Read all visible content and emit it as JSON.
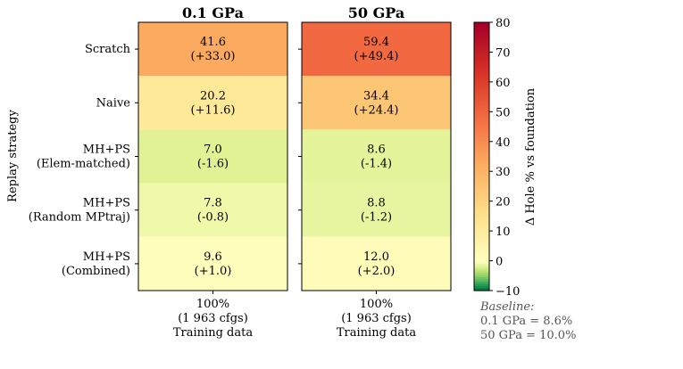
{
  "chart_data": {
    "type": "heatmap",
    "panels": [
      {
        "title": "0.1 GPa",
        "xlabel_lines": [
          "100%",
          "(1 963 cfgs)",
          "Training data"
        ],
        "cells": [
          {
            "value": 41.6,
            "delta": 33.0,
            "label_main": "41.6",
            "label_delta": "(+33.0)"
          },
          {
            "value": 20.2,
            "delta": 11.6,
            "label_main": "20.2",
            "label_delta": "(+11.6)"
          },
          {
            "value": 7.0,
            "delta": -1.6,
            "label_main": "7.0",
            "label_delta": "(-1.6)"
          },
          {
            "value": 7.8,
            "delta": -0.8,
            "label_main": "7.8",
            "label_delta": "(-0.8)"
          },
          {
            "value": 9.6,
            "delta": 1.0,
            "label_main": "9.6",
            "label_delta": "(+1.0)"
          }
        ]
      },
      {
        "title": "50 GPa",
        "xlabel_lines": [
          "100%",
          "(1 963 cfgs)",
          "Training data"
        ],
        "cells": [
          {
            "value": 59.4,
            "delta": 49.4,
            "label_main": "59.4",
            "label_delta": "(+49.4)"
          },
          {
            "value": 34.4,
            "delta": 24.4,
            "label_main": "34.4",
            "label_delta": "(+24.4)"
          },
          {
            "value": 8.6,
            "delta": -1.4,
            "label_main": "8.6",
            "label_delta": "(-1.4)"
          },
          {
            "value": 8.8,
            "delta": -1.2,
            "label_main": "8.8",
            "label_delta": "(-1.2)"
          },
          {
            "value": 12.0,
            "delta": 2.0,
            "label_main": "12.0",
            "label_delta": "(+2.0)"
          }
        ]
      }
    ],
    "rows": [
      [
        "Scratch"
      ],
      [
        "Naive"
      ],
      [
        "MH+PS",
        "(Elem-matched)"
      ],
      [
        "MH+PS",
        "(Random MPtraj)"
      ],
      [
        "MH+PS",
        "(Combined)"
      ]
    ],
    "ylabel": "Replay strategy",
    "colorbar": {
      "label": "Δ Hole % vs foundation",
      "min": -10,
      "max": 80,
      "ticks": [
        80,
        70,
        60,
        50,
        40,
        30,
        20,
        10,
        0,
        -10
      ],
      "tick_labels": [
        "80",
        "70",
        "60",
        "50",
        "40",
        "30",
        "20",
        "10",
        "0",
        "−10"
      ],
      "colormap": "RdYlGn_r"
    },
    "baseline": {
      "heading": "Baseline:",
      "lines": [
        "0.1 GPa = 8.6%",
        "50 GPa = 10.0%"
      ]
    }
  }
}
